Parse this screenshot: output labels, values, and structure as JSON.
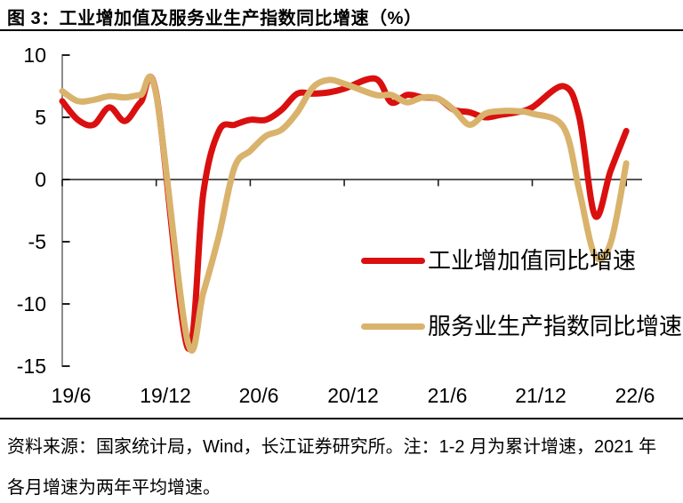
{
  "header": {
    "title": "图 3：工业增加值及服务业生产指数同比增速（%）"
  },
  "footer": {
    "lines": [
      "资料来源：国家统计局，Wind，长江证券研究所。注：1-2 月为累计增速，2021 年",
      "各月增速为两年平均增速。"
    ]
  },
  "chart_data": {
    "type": "line",
    "title": "工业增加值及服务业生产指数同比增速（%）",
    "y_unit": "%",
    "x_months_since": "2019/6",
    "x_tick_labels": [
      "19/6",
      "19/12",
      "20/6",
      "20/12",
      "21/6",
      "21/12",
      "22/6"
    ],
    "x_tick_months": [
      0,
      6,
      12,
      18,
      24,
      30,
      36
    ],
    "y_tick_labels": [
      "10",
      "5",
      "0",
      "-5",
      "-10",
      "-15"
    ],
    "y_ticks": [
      10,
      5,
      0,
      -5,
      -10,
      -15
    ],
    "ylim": [
      -15,
      10
    ],
    "grid": false,
    "legend_position": "inside lower right",
    "series": [
      {
        "name": "工业增加值同比增速",
        "color": "#d9100f",
        "points": [
          [
            0,
            6.3
          ],
          [
            1,
            4.8
          ],
          [
            2,
            4.4
          ],
          [
            3,
            5.8
          ],
          [
            4,
            4.7
          ],
          [
            5,
            6.2
          ],
          [
            6,
            6.9
          ],
          [
            8,
            -13.5
          ],
          [
            9,
            -1.1
          ],
          [
            10,
            3.9
          ],
          [
            11,
            4.4
          ],
          [
            12,
            4.8
          ],
          [
            13,
            4.8
          ],
          [
            14,
            5.6
          ],
          [
            15,
            6.9
          ],
          [
            16,
            6.9
          ],
          [
            17,
            7.0
          ],
          [
            18,
            7.3
          ],
          [
            20,
            8.1
          ],
          [
            21,
            6.2
          ],
          [
            22,
            6.8
          ],
          [
            23,
            6.6
          ],
          [
            24,
            6.5
          ],
          [
            25,
            5.6
          ],
          [
            26,
            5.4
          ],
          [
            27,
            5.0
          ],
          [
            28,
            5.2
          ],
          [
            29,
            5.4
          ],
          [
            30,
            5.8
          ],
          [
            32,
            7.5
          ],
          [
            33,
            5.0
          ],
          [
            34,
            -2.9
          ],
          [
            35,
            0.7
          ],
          [
            36,
            3.9
          ]
        ]
      },
      {
        "name": "服务业生产指数同比增速",
        "color": "#d9b36c",
        "points": [
          [
            0,
            7.1
          ],
          [
            1,
            6.3
          ],
          [
            2,
            6.4
          ],
          [
            3,
            6.7
          ],
          [
            4,
            6.6
          ],
          [
            5,
            6.8
          ],
          [
            6,
            6.8
          ],
          [
            8,
            -13.0
          ],
          [
            9,
            -9.1
          ],
          [
            10,
            -4.5
          ],
          [
            11,
            1.0
          ],
          [
            12,
            2.3
          ],
          [
            13,
            3.5
          ],
          [
            14,
            4.0
          ],
          [
            15,
            5.4
          ],
          [
            16,
            7.4
          ],
          [
            17,
            8.0
          ],
          [
            18,
            7.7
          ],
          [
            20,
            6.8
          ],
          [
            21,
            6.8
          ],
          [
            22,
            6.2
          ],
          [
            23,
            6.6
          ],
          [
            24,
            6.5
          ],
          [
            25,
            5.6
          ],
          [
            26,
            4.4
          ],
          [
            27,
            5.3
          ],
          [
            28,
            5.5
          ],
          [
            29,
            5.5
          ],
          [
            30,
            5.3
          ],
          [
            32,
            4.2
          ],
          [
            33,
            -0.9
          ],
          [
            34,
            -6.1
          ],
          [
            35,
            -5.1
          ],
          [
            36,
            1.3
          ]
        ]
      }
    ]
  }
}
